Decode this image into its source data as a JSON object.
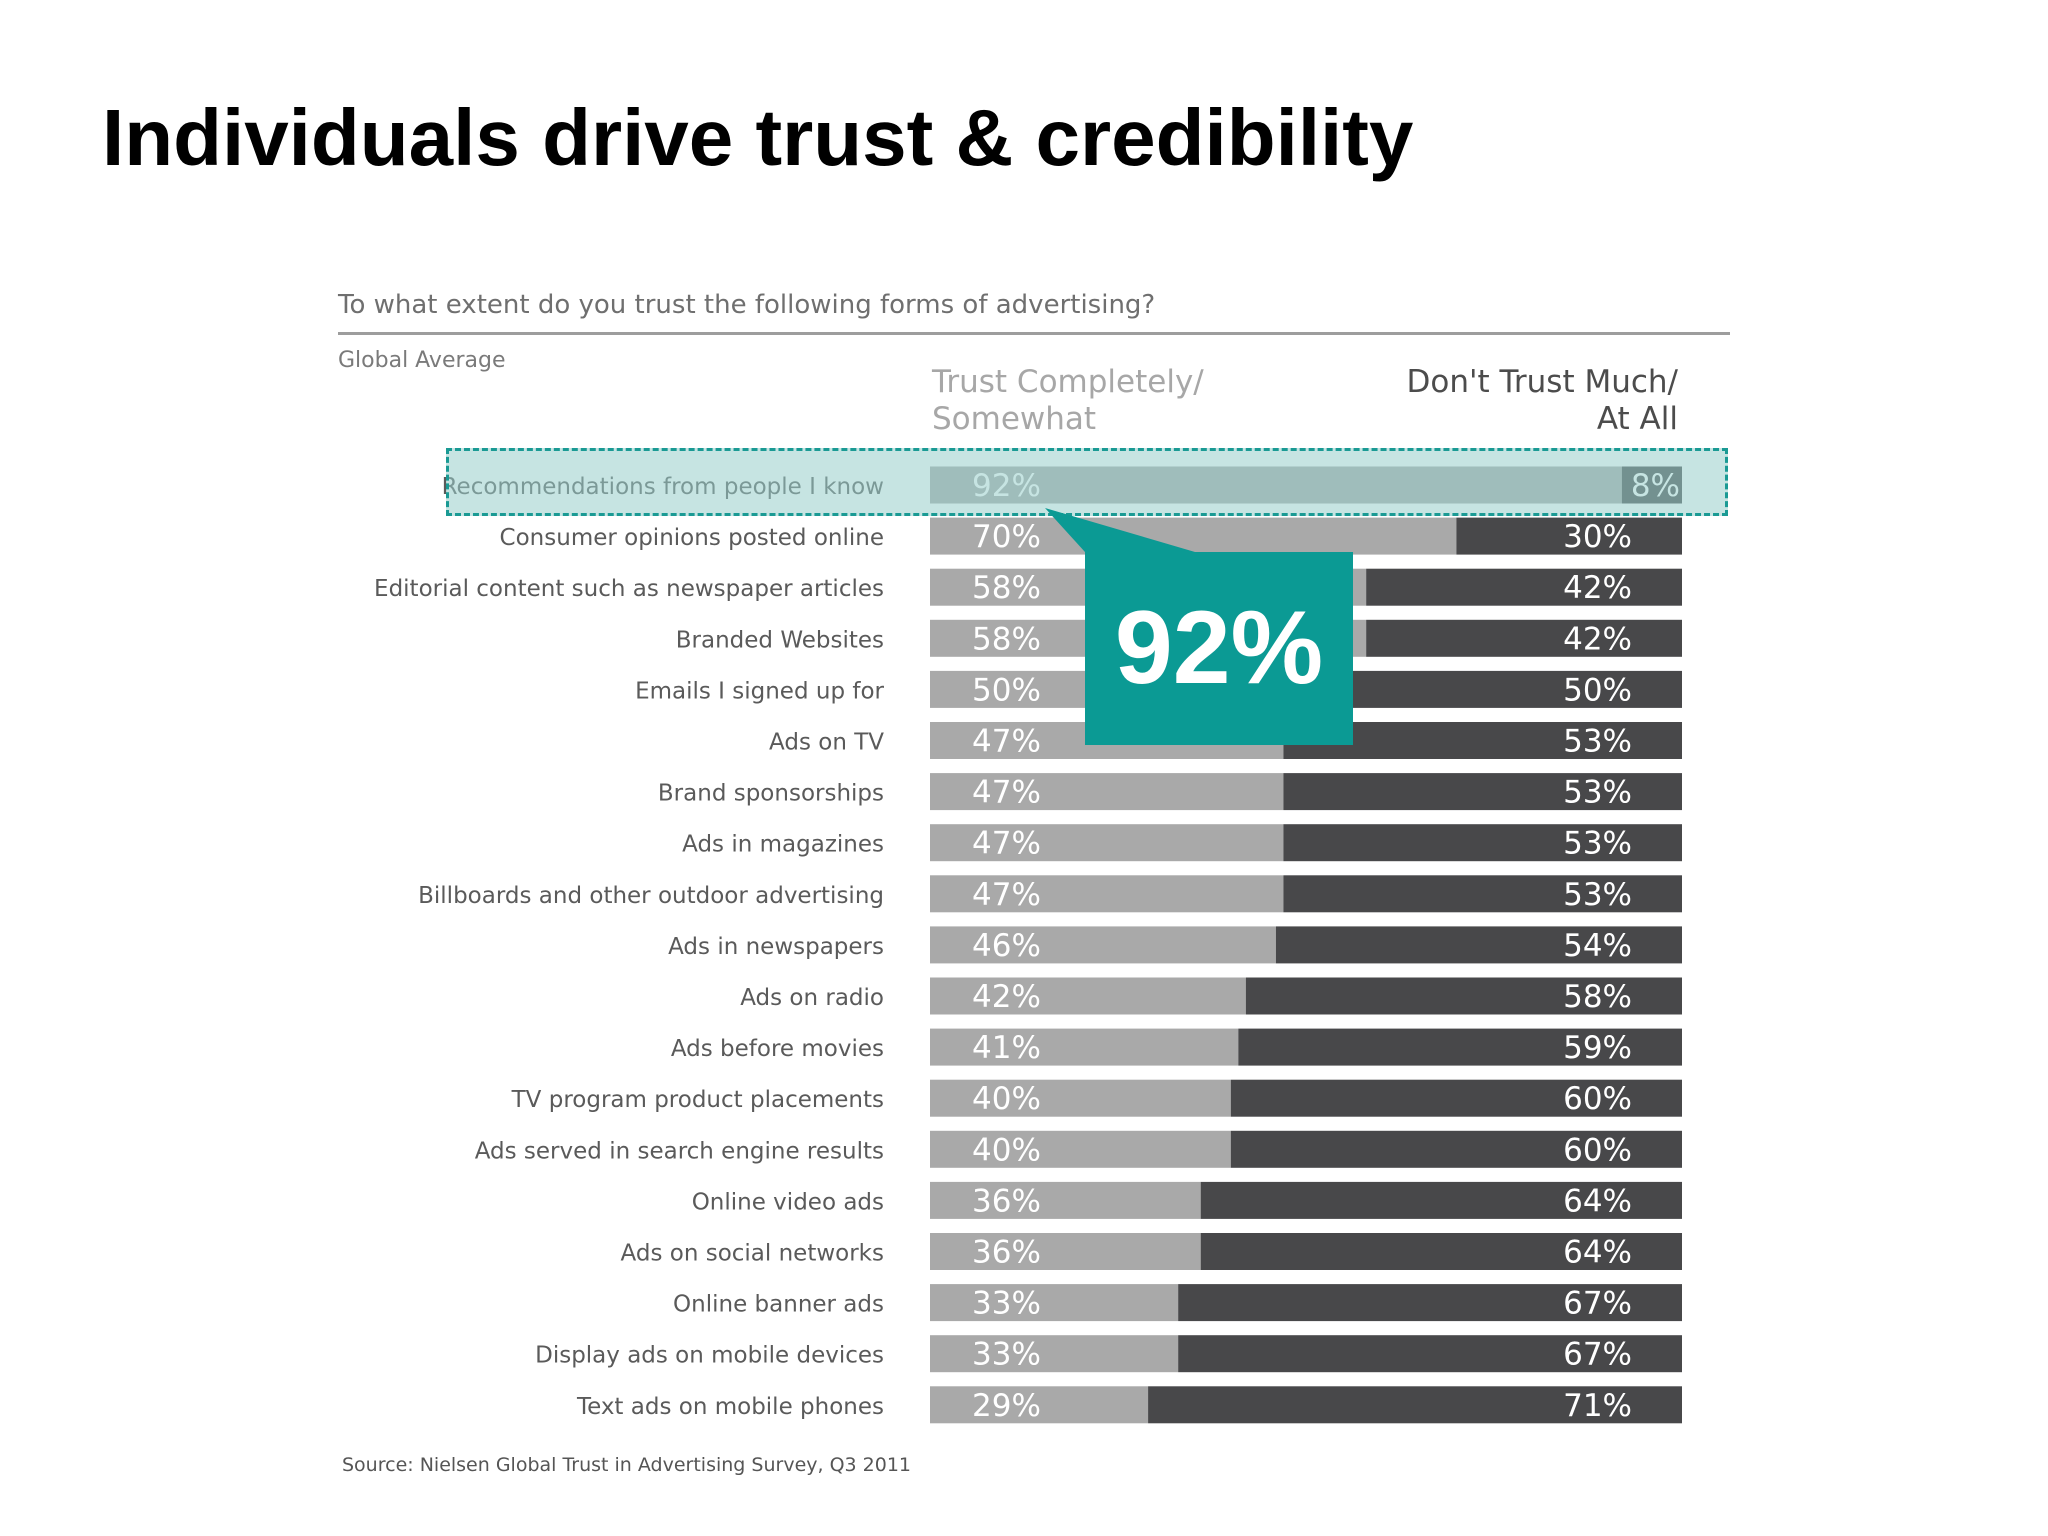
{
  "slide": {
    "title": "Individuals drive trust & credibility"
  },
  "chart_data": {
    "type": "bar",
    "orientation": "horizontal-stacked-100",
    "title": "To what extent do you trust the following forms of advertising?",
    "subtitle": "Global Average",
    "categories": [
      "Recommendations from people I know",
      "Consumer opinions posted online",
      "Editorial content such as newspaper articles",
      "Branded Websites",
      "Emails I signed up for",
      "Ads on TV",
      "Brand sponsorships",
      "Ads in magazines",
      "Billboards and other outdoor advertising",
      "Ads in newspapers",
      "Ads on radio",
      "Ads before movies",
      "TV program product placements",
      "Ads served in search engine results",
      "Online video ads",
      "Ads on social networks",
      "Online banner ads",
      "Display ads on mobile devices",
      "Text ads on mobile phones"
    ],
    "series": [
      {
        "name": "Trust Completely/ Somewhat",
        "color": "#a9a9a9",
        "values": [
          92,
          70,
          58,
          58,
          50,
          47,
          47,
          47,
          47,
          46,
          42,
          41,
          40,
          40,
          36,
          36,
          33,
          33,
          29
        ]
      },
      {
        "name": "Don't Trust Much/ At All",
        "color": "#48484a",
        "values": [
          8,
          30,
          42,
          42,
          50,
          53,
          53,
          53,
          53,
          54,
          58,
          59,
          60,
          60,
          64,
          64,
          67,
          67,
          71
        ]
      }
    ],
    "value_suffix": "%",
    "xlim": [
      0,
      100
    ],
    "legend": {
      "trust_line1": "Trust Completely/",
      "trust_line2": "Somewhat",
      "distrust_line1": "Don't Trust Much/",
      "distrust_line2": "At All",
      "placement": "top"
    },
    "source": "Source: Nielsen Global Trust in Advertising Survey, Q3 2011"
  },
  "callout": {
    "value": "92%",
    "color": "#0b9a94",
    "highlighted_category": "Recommendations from people I know"
  }
}
